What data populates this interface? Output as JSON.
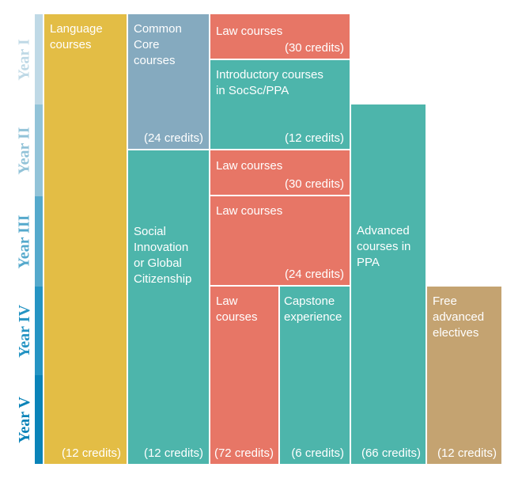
{
  "years": [
    {
      "label": "Year I",
      "color": "#bfd9e6"
    },
    {
      "label": "Year II",
      "color": "#92c3d8"
    },
    {
      "label": "Year III",
      "color": "#55a9cc"
    },
    {
      "label": "Year IV",
      "color": "#2594c3"
    },
    {
      "label": "Year V",
      "color": "#0a83b8"
    }
  ],
  "blocks": {
    "language": {
      "title": "Language courses",
      "credits": "(12 credits)"
    },
    "common_core": {
      "title": "Common Core courses",
      "credits": "(24 credits)"
    },
    "social": {
      "title": "Social Innovation or Global Citizenship",
      "credits": "(12 credits)"
    },
    "law_1": {
      "title": "Law courses",
      "credits": "(30 credits)"
    },
    "intro": {
      "title": "Introductory courses in SocSc/PPA",
      "credits": "(12 credits)"
    },
    "law_2": {
      "title": "Law courses",
      "credits": "(30 credits)"
    },
    "law_3": {
      "title": "Law courses",
      "credits": "(24 credits)"
    },
    "law_4": {
      "title": "Law courses",
      "credits": "(72 credits)"
    },
    "capstone": {
      "title": "Capstone experience",
      "credits": "(6 credits)"
    },
    "advanced_ppa": {
      "title": "Advanced courses in PPA",
      "credits": "(66 credits)"
    },
    "free": {
      "title": "Free advanced electives",
      "credits": "(12 credits)"
    }
  },
  "colors": {
    "language": "#e3bd45",
    "common_core": "#85aabf",
    "teal": "#4db5ab",
    "law": "#e77666",
    "free": "#c4a371"
  }
}
